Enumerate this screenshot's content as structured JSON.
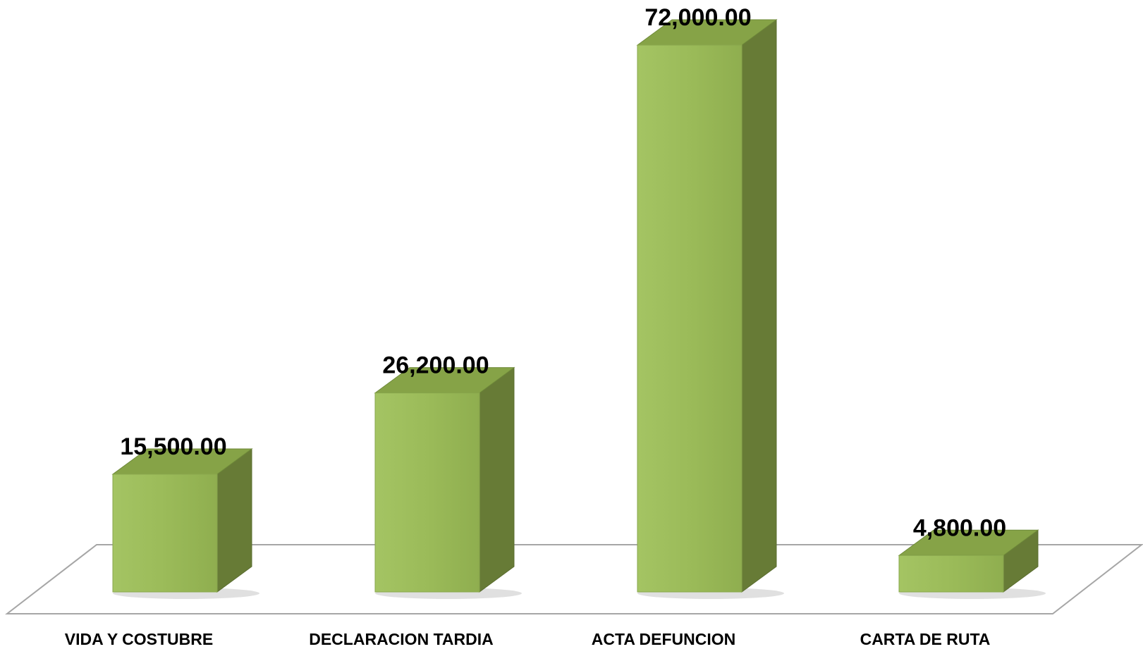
{
  "chart_data": {
    "type": "bar3d",
    "categories": [
      "VIDA Y COSTUBRE",
      "DECLARACION TARDIA",
      "ACTA DEFUNCION",
      "CARTA DE RUTA"
    ],
    "values": [
      15500,
      26200,
      72000,
      4800
    ],
    "value_labels": [
      "15,500.00",
      "26,200.00",
      "72,000.00",
      "4,800.00"
    ],
    "color": "#9bbb59"
  }
}
